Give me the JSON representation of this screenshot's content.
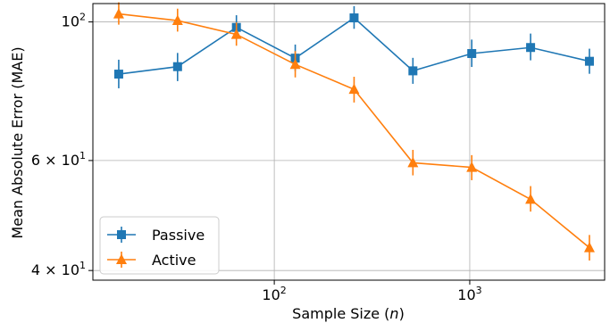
{
  "chart_data": {
    "type": "line",
    "xlabel": "Sample Size (",
    "xlabel_var": "n",
    "xlabel_close": ")",
    "ylabel": "Mean Absolute Error (MAE)",
    "x_scale": "log",
    "y_scale": "log",
    "xlim": [
      11.8,
      4900
    ],
    "ylim": [
      38.6,
      107
    ],
    "x_ticks": [
      {
        "value": 100,
        "base": "10",
        "exp": "2"
      },
      {
        "value": 1000,
        "base": "10",
        "exp": "3"
      }
    ],
    "y_ticks": [
      {
        "value": 40,
        "text": "4 × 10",
        "exp": "1"
      },
      {
        "value": 60,
        "text": "6 × 10",
        "exp": "1"
      },
      {
        "value": 100,
        "base": "10",
        "exp": "2"
      }
    ],
    "grid": true,
    "legend_position": "lower-left",
    "x": [
      16,
      32,
      64,
      128,
      256,
      512,
      1024,
      2048,
      4096
    ],
    "series": [
      {
        "name": "Passive",
        "color": "#1f77b4",
        "marker": "square",
        "values": [
          82.5,
          84.8,
          98.0,
          87.5,
          101.5,
          83.5,
          89.0,
          91.0,
          86.5
        ],
        "err_low": [
          78.3,
          80.4,
          94.0,
          83.4,
          97.5,
          79.6,
          84.7,
          86.8,
          82.6
        ],
        "err_high": [
          87.0,
          89.2,
          102.5,
          92.0,
          106.0,
          87.6,
          93.7,
          95.8,
          90.6
        ]
      },
      {
        "name": "Active",
        "color": "#ff7f0e",
        "marker": "triangle",
        "values": [
          103.0,
          100.5,
          95.5,
          85.5,
          78.0,
          59.5,
          58.5,
          52.0,
          43.5
        ],
        "err_low": [
          99.0,
          96.5,
          91.6,
          81.5,
          74.3,
          56.8,
          55.8,
          49.7,
          41.5
        ],
        "err_high": [
          107.5,
          105.0,
          99.8,
          89.8,
          81.7,
          62.4,
          61.2,
          54.6,
          45.6
        ]
      }
    ]
  }
}
